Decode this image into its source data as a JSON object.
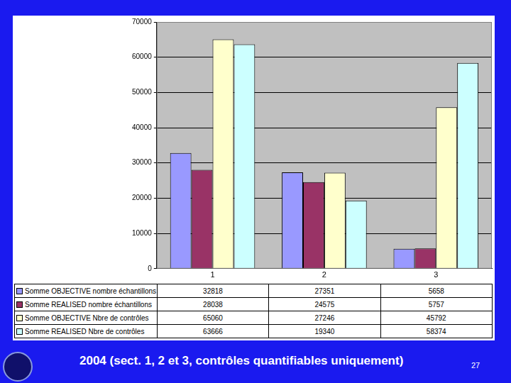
{
  "chart_data": {
    "type": "bar",
    "categories": [
      "1",
      "2",
      "3"
    ],
    "series": [
      {
        "name": "Somme OBJECTIVE nombre échantillons",
        "color": "#9999ff",
        "values": [
          32818,
          27351,
          5658
        ]
      },
      {
        "name": "Somme REALISED nombre échantillons",
        "color": "#993366",
        "values": [
          28038,
          24575,
          5757
        ]
      },
      {
        "name": "Somme OBJECTIVE Nbre de contrôles",
        "color": "#ffffcc",
        "values": [
          65060,
          27246,
          45792
        ]
      },
      {
        "name": "Somme REALISED Nbre de contrôles",
        "color": "#ccffff",
        "values": [
          63666,
          19340,
          58374
        ]
      }
    ],
    "ylim": [
      0,
      70000
    ],
    "yticks": [
      0,
      10000,
      20000,
      30000,
      40000,
      50000,
      60000,
      70000
    ],
    "grid": true
  },
  "footer": "2004 (sect. 1, 2 et 3, contrôles quantifiables uniquement)",
  "page_number": "27"
}
